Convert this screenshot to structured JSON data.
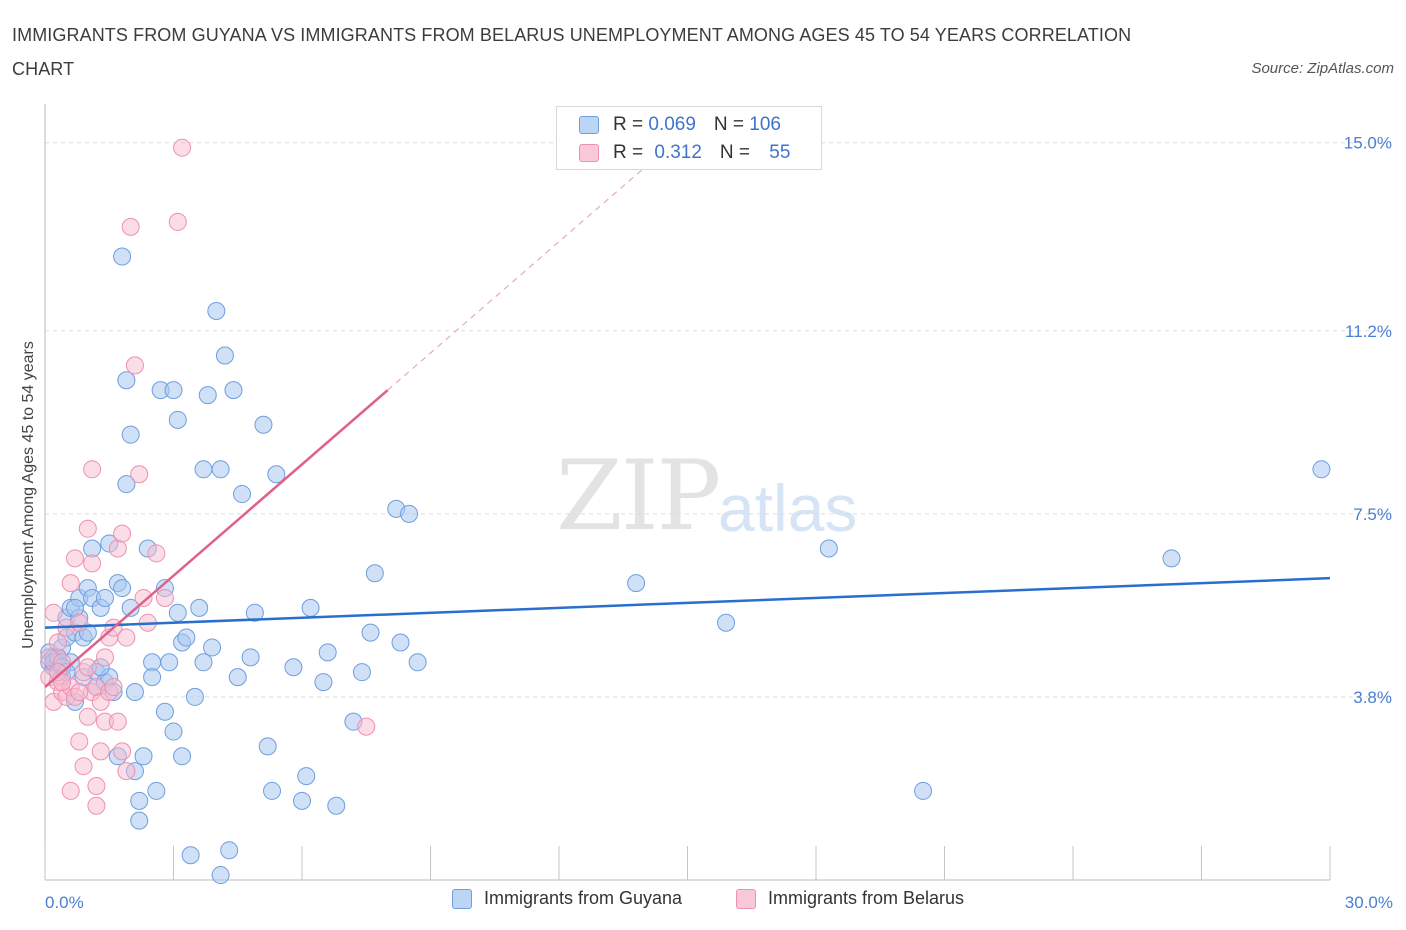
{
  "header": {
    "title": "IMMIGRANTS FROM GUYANA VS IMMIGRANTS FROM BELARUS UNEMPLOYMENT AMONG AGES 45 TO 54 YEARS CORRELATION CHART",
    "source": "Source: ZipAtlas.com"
  },
  "watermark": {
    "zip": "ZIP",
    "atlas": "atlas"
  },
  "legend": {
    "rows": [
      {
        "r_label": "R = ",
        "r_value": "0.069",
        "n_label": "N = ",
        "n_value": "106"
      },
      {
        "r_label": "R = ",
        "r_value": "0.312",
        "n_label": "N = ",
        "n_value": "55"
      }
    ],
    "bottom": [
      "Immigrants from Guyana",
      "Immigrants from Belarus"
    ]
  },
  "colors": {
    "guyana_fill": "#a9c8f0",
    "guyana_stroke": "#6d9ee0",
    "guyana_line": "#2a6fcc",
    "belarus_fill": "#f6bcd0",
    "belarus_stroke": "#ef90b0",
    "belarus_line": "#e0608c",
    "grid": "#dcdcdc",
    "axis_text": "#4a7fd4"
  },
  "chart_data": {
    "type": "scatter",
    "title": "IMMIGRANTS FROM GUYANA VS IMMIGRANTS FROM BELARUS UNEMPLOYMENT AMONG AGES 45 TO 54 YEARS CORRELATION CHART",
    "xlabel": "",
    "ylabel": "Unemployment Among Ages 45 to 54 years",
    "xlim": [
      0,
      30
    ],
    "ylim": [
      0.1,
      15.5
    ],
    "x_tick_labels": [
      {
        "value": 0,
        "label": "0.0%"
      },
      {
        "value": 30,
        "label": "30.0%"
      }
    ],
    "y_tick_labels": [
      {
        "value": 15.0,
        "label": "15.0%"
      },
      {
        "value": 11.2,
        "label": "11.2%"
      },
      {
        "value": 7.5,
        "label": "7.5%"
      },
      {
        "value": 3.8,
        "label": "3.8%"
      }
    ],
    "series": [
      {
        "name": "Immigrants from Guyana",
        "R": 0.069,
        "N": 106,
        "trend": {
          "x0": 0,
          "y0": 5.2,
          "x1": 30,
          "y1": 6.2
        },
        "points": [
          [
            0.1,
            4.7
          ],
          [
            0.1,
            4.5
          ],
          [
            0.2,
            4.4
          ],
          [
            0.2,
            4.6
          ],
          [
            0.3,
            4.3
          ],
          [
            0.3,
            4.5
          ],
          [
            0.4,
            4.8
          ],
          [
            0.4,
            4.2
          ],
          [
            0.5,
            5.4
          ],
          [
            0.5,
            5.0
          ],
          [
            0.6,
            5.6
          ],
          [
            0.6,
            4.5
          ],
          [
            0.7,
            5.1
          ],
          [
            0.7,
            3.7
          ],
          [
            0.8,
            5.8
          ],
          [
            0.8,
            5.4
          ],
          [
            0.9,
            5.0
          ],
          [
            0.9,
            4.2
          ],
          [
            1.0,
            6.0
          ],
          [
            1.0,
            5.1
          ],
          [
            1.1,
            6.8
          ],
          [
            1.1,
            5.8
          ],
          [
            1.2,
            4.3
          ],
          [
            1.2,
            4.0
          ],
          [
            1.3,
            5.6
          ],
          [
            1.4,
            5.8
          ],
          [
            1.4,
            4.1
          ],
          [
            1.5,
            6.9
          ],
          [
            1.5,
            4.2
          ],
          [
            1.6,
            3.9
          ],
          [
            1.7,
            6.1
          ],
          [
            1.7,
            2.6
          ],
          [
            1.8,
            12.7
          ],
          [
            1.8,
            6.0
          ],
          [
            1.9,
            10.2
          ],
          [
            1.9,
            8.1
          ],
          [
            2.0,
            9.1
          ],
          [
            2.0,
            5.6
          ],
          [
            2.1,
            3.9
          ],
          [
            2.1,
            2.3
          ],
          [
            2.2,
            1.3
          ],
          [
            2.2,
            1.7
          ],
          [
            2.3,
            2.6
          ],
          [
            2.4,
            6.8
          ],
          [
            2.5,
            4.5
          ],
          [
            2.5,
            4.2
          ],
          [
            2.6,
            1.9
          ],
          [
            2.7,
            10.0
          ],
          [
            2.8,
            6.0
          ],
          [
            2.8,
            3.5
          ],
          [
            2.9,
            4.5
          ],
          [
            3.0,
            10.0
          ],
          [
            3.0,
            3.1
          ],
          [
            3.1,
            9.4
          ],
          [
            3.1,
            5.5
          ],
          [
            3.2,
            4.9
          ],
          [
            3.3,
            5.0
          ],
          [
            3.4,
            0.6
          ],
          [
            3.5,
            3.8
          ],
          [
            3.6,
            5.6
          ],
          [
            3.7,
            8.4
          ],
          [
            3.7,
            4.5
          ],
          [
            3.8,
            9.9
          ],
          [
            3.9,
            4.8
          ],
          [
            4.0,
            11.6
          ],
          [
            4.1,
            8.4
          ],
          [
            4.1,
            0.2
          ],
          [
            4.2,
            10.7
          ],
          [
            4.3,
            0.7
          ],
          [
            4.4,
            10.0
          ],
          [
            4.5,
            4.2
          ],
          [
            4.6,
            7.9
          ],
          [
            4.8,
            4.6
          ],
          [
            4.9,
            5.5
          ],
          [
            5.1,
            9.3
          ],
          [
            5.2,
            2.8
          ],
          [
            5.3,
            1.9
          ],
          [
            5.4,
            8.3
          ],
          [
            5.8,
            4.4
          ],
          [
            6.0,
            1.7
          ],
          [
            6.1,
            2.2
          ],
          [
            6.2,
            5.6
          ],
          [
            6.5,
            4.1
          ],
          [
            6.6,
            4.7
          ],
          [
            6.8,
            1.6
          ],
          [
            7.2,
            3.3
          ],
          [
            7.4,
            4.3
          ],
          [
            7.6,
            5.1
          ],
          [
            7.7,
            6.3
          ],
          [
            8.2,
            7.6
          ],
          [
            8.3,
            4.9
          ],
          [
            8.5,
            7.5
          ],
          [
            8.7,
            4.5
          ],
          [
            13.8,
            6.1
          ],
          [
            15.9,
            5.3
          ],
          [
            18.3,
            6.8
          ],
          [
            20.5,
            1.9
          ],
          [
            26.3,
            6.6
          ],
          [
            29.8,
            8.4
          ],
          [
            0.2,
            4.5
          ],
          [
            0.3,
            4.6
          ],
          [
            0.4,
            4.4
          ],
          [
            0.5,
            4.3
          ],
          [
            0.7,
            5.6
          ],
          [
            1.3,
            4.4
          ],
          [
            3.2,
            2.6
          ]
        ]
      },
      {
        "name": "Immigrants from Belarus",
        "R": 0.312,
        "N": 55,
        "trend": {
          "x0": 0,
          "y0": 4.0,
          "x1": 8.0,
          "y1": 10.0
        },
        "trend_extension": {
          "x0": 8.0,
          "y0": 10.0,
          "x1": 14.0,
          "y1": 14.5
        },
        "points": [
          [
            0.1,
            4.2
          ],
          [
            0.1,
            4.6
          ],
          [
            0.2,
            5.5
          ],
          [
            0.2,
            3.7
          ],
          [
            0.3,
            4.1
          ],
          [
            0.3,
            4.9
          ],
          [
            0.4,
            3.9
          ],
          [
            0.4,
            4.5
          ],
          [
            0.5,
            5.2
          ],
          [
            0.5,
            3.8
          ],
          [
            0.6,
            4.0
          ],
          [
            0.6,
            6.1
          ],
          [
            0.7,
            6.6
          ],
          [
            0.7,
            3.8
          ],
          [
            0.8,
            5.3
          ],
          [
            0.8,
            2.9
          ],
          [
            0.9,
            4.3
          ],
          [
            0.9,
            2.4
          ],
          [
            1.0,
            7.2
          ],
          [
            1.0,
            3.4
          ],
          [
            1.1,
            6.5
          ],
          [
            1.1,
            3.9
          ],
          [
            1.2,
            4.0
          ],
          [
            1.2,
            2.0
          ],
          [
            1.3,
            3.7
          ],
          [
            1.3,
            2.7
          ],
          [
            1.4,
            4.6
          ],
          [
            1.4,
            3.3
          ],
          [
            1.5,
            5.0
          ],
          [
            1.5,
            3.9
          ],
          [
            1.6,
            5.2
          ],
          [
            1.6,
            4.0
          ],
          [
            1.7,
            6.8
          ],
          [
            1.7,
            3.3
          ],
          [
            1.8,
            7.1
          ],
          [
            1.8,
            2.7
          ],
          [
            1.9,
            5.0
          ],
          [
            1.9,
            2.3
          ],
          [
            2.0,
            13.3
          ],
          [
            2.1,
            10.5
          ],
          [
            2.2,
            8.3
          ],
          [
            2.3,
            5.8
          ],
          [
            2.4,
            5.3
          ],
          [
            2.6,
            6.7
          ],
          [
            2.8,
            5.8
          ],
          [
            3.1,
            13.4
          ],
          [
            3.2,
            14.9
          ],
          [
            1.1,
            8.4
          ],
          [
            0.6,
            1.9
          ],
          [
            1.2,
            1.6
          ],
          [
            7.5,
            3.2
          ],
          [
            0.3,
            4.3
          ],
          [
            0.4,
            4.1
          ],
          [
            0.8,
            3.9
          ],
          [
            1.0,
            4.4
          ]
        ]
      }
    ]
  }
}
